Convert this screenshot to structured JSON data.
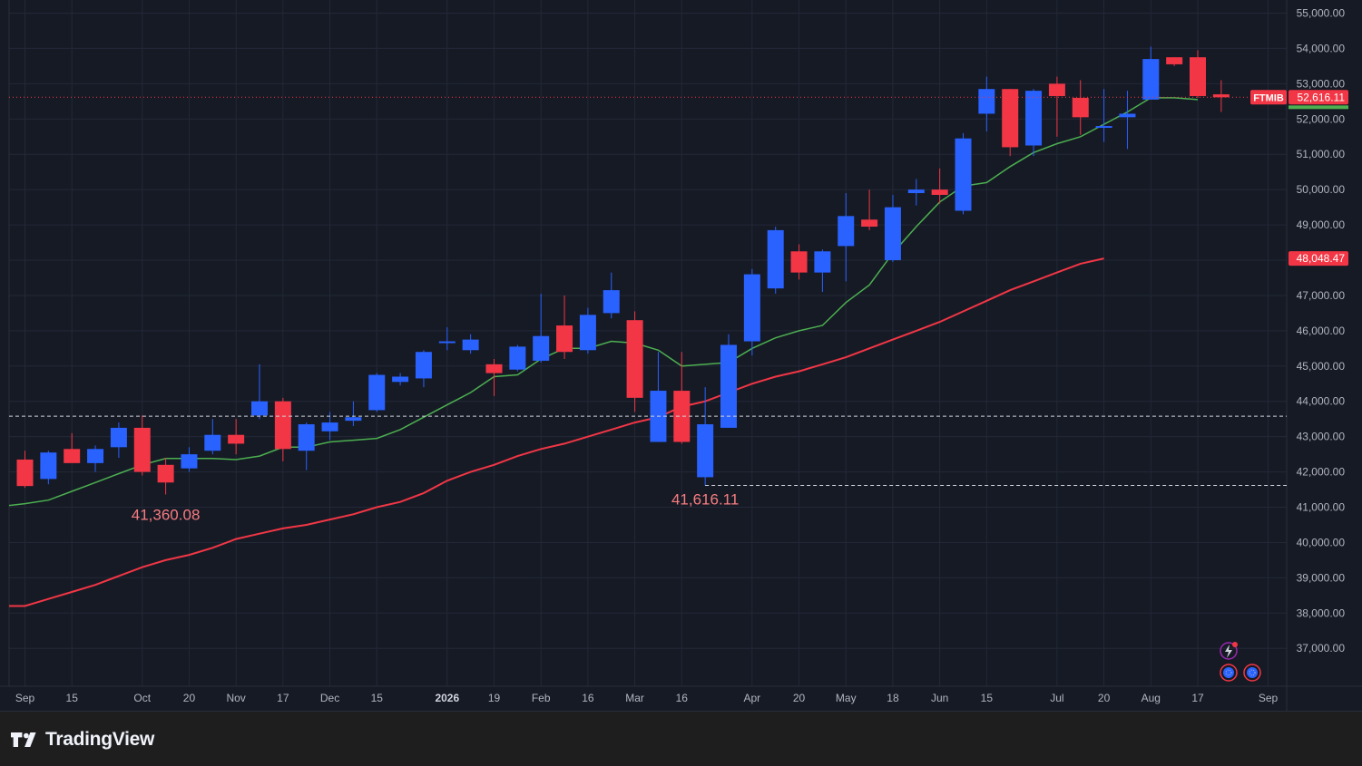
{
  "branding": {
    "name": "TradingView"
  },
  "colors": {
    "background": "#161a25",
    "grid": "#232838",
    "up": "#2962ff",
    "down": "#f23645",
    "ma_fast": "#4caf50",
    "ma_slow": "#f23645",
    "axis_text": "#b2b5be"
  },
  "chart_data": {
    "type": "candlestick",
    "symbol": "FTMIB",
    "timeframe": "weekly",
    "y_axis": {
      "position": "right",
      "range": [
        36000,
        55000
      ],
      "ticks": [
        "55,000.00",
        "54,000.00",
        "53,000.00",
        "52,000.00",
        "51,000.00",
        "50,000.00",
        "49,000.00",
        "48,000.00",
        "47,000.00",
        "46,000.00",
        "45,000.00",
        "44,000.00",
        "43,000.00",
        "42,000.00",
        "41,000.00",
        "40,000.00",
        "39,000.00",
        "38,000.00",
        "37,000.00"
      ]
    },
    "x_axis": {
      "labels": [
        {
          "text": "Sep",
          "i": 0,
          "bold": false
        },
        {
          "text": "15",
          "i": 2,
          "bold": false
        },
        {
          "text": "Oct",
          "i": 5,
          "bold": false
        },
        {
          "text": "20",
          "i": 7,
          "bold": false
        },
        {
          "text": "Nov",
          "i": 9,
          "bold": false
        },
        {
          "text": "17",
          "i": 11,
          "bold": false
        },
        {
          "text": "Dec",
          "i": 13,
          "bold": false
        },
        {
          "text": "15",
          "i": 15,
          "bold": false
        },
        {
          "text": "2026",
          "i": 18,
          "bold": true
        },
        {
          "text": "19",
          "i": 20,
          "bold": false
        },
        {
          "text": "Feb",
          "i": 22,
          "bold": false
        },
        {
          "text": "16",
          "i": 24,
          "bold": false
        },
        {
          "text": "Mar",
          "i": 26,
          "bold": false
        },
        {
          "text": "16",
          "i": 28,
          "bold": false
        },
        {
          "text": "Apr",
          "i": 31,
          "bold": false
        },
        {
          "text": "20",
          "i": 33,
          "bold": false
        },
        {
          "text": "May",
          "i": 35,
          "bold": false
        },
        {
          "text": "18",
          "i": 37,
          "bold": false
        },
        {
          "text": "Jun",
          "i": 39,
          "bold": false
        },
        {
          "text": "15",
          "i": 41,
          "bold": false
        },
        {
          "text": "Jul",
          "i": 44,
          "bold": false
        },
        {
          "text": "20",
          "i": 46,
          "bold": false
        },
        {
          "text": "Aug",
          "i": 48,
          "bold": false
        },
        {
          "text": "17",
          "i": 50,
          "bold": false
        },
        {
          "text": "Sep",
          "i": 53,
          "bold": false
        }
      ]
    },
    "candles": [
      {
        "o": 42350,
        "h": 42600,
        "l": 41550,
        "c": 41600
      },
      {
        "o": 41800,
        "h": 42600,
        "l": 41650,
        "c": 42550
      },
      {
        "o": 42650,
        "h": 43100,
        "l": 42300,
        "c": 42250
      },
      {
        "o": 42250,
        "h": 42750,
        "l": 42000,
        "c": 42650
      },
      {
        "o": 42700,
        "h": 43400,
        "l": 42400,
        "c": 43250
      },
      {
        "o": 43250,
        "h": 43600,
        "l": 41900,
        "c": 42000
      },
      {
        "o": 42200,
        "h": 42400,
        "l": 41360.08,
        "c": 41700
      },
      {
        "o": 42100,
        "h": 42700,
        "l": 42000,
        "c": 42500
      },
      {
        "o": 42600,
        "h": 43500,
        "l": 42500,
        "c": 43050
      },
      {
        "o": 43050,
        "h": 43500,
        "l": 42500,
        "c": 42800
      },
      {
        "o": 43600,
        "h": 45050,
        "l": 43500,
        "c": 44000
      },
      {
        "o": 44000,
        "h": 44100,
        "l": 42300,
        "c": 42650
      },
      {
        "o": 42600,
        "h": 43400,
        "l": 42050,
        "c": 43350
      },
      {
        "o": 43150,
        "h": 43700,
        "l": 42900,
        "c": 43400
      },
      {
        "o": 43450,
        "h": 44000,
        "l": 43300,
        "c": 43550
      },
      {
        "o": 43750,
        "h": 44800,
        "l": 43700,
        "c": 44750
      },
      {
        "o": 44550,
        "h": 44800,
        "l": 44450,
        "c": 44700
      },
      {
        "o": 44650,
        "h": 45450,
        "l": 44400,
        "c": 45400
      },
      {
        "o": 45650,
        "h": 46100,
        "l": 45450,
        "c": 45700
      },
      {
        "o": 45450,
        "h": 45900,
        "l": 45350,
        "c": 45750
      },
      {
        "o": 45050,
        "h": 45200,
        "l": 44150,
        "c": 44800
      },
      {
        "o": 44900,
        "h": 45600,
        "l": 44850,
        "c": 45550
      },
      {
        "o": 45150,
        "h": 47050,
        "l": 45100,
        "c": 45850
      },
      {
        "o": 46150,
        "h": 47000,
        "l": 45200,
        "c": 45400
      },
      {
        "o": 45450,
        "h": 46650,
        "l": 45350,
        "c": 46450
      },
      {
        "o": 46500,
        "h": 47650,
        "l": 46350,
        "c": 47150
      },
      {
        "o": 46300,
        "h": 46550,
        "l": 43700,
        "c": 44100
      },
      {
        "o": 42850,
        "h": 45400,
        "l": 42850,
        "c": 44300
      },
      {
        "o": 44300,
        "h": 45400,
        "l": 42800,
        "c": 42850
      },
      {
        "o": 41850,
        "h": 44400,
        "l": 41616.11,
        "c": 43350
      },
      {
        "o": 43250,
        "h": 45900,
        "l": 43250,
        "c": 45600
      },
      {
        "o": 45700,
        "h": 47750,
        "l": 45300,
        "c": 47600
      },
      {
        "o": 47200,
        "h": 48950,
        "l": 47050,
        "c": 48850
      },
      {
        "o": 48250,
        "h": 48450,
        "l": 47450,
        "c": 47650
      },
      {
        "o": 47650,
        "h": 48300,
        "l": 47100,
        "c": 48250
      },
      {
        "o": 48400,
        "h": 49900,
        "l": 47400,
        "c": 49250
      },
      {
        "o": 49150,
        "h": 50000,
        "l": 48850,
        "c": 48950
      },
      {
        "o": 48000,
        "h": 49850,
        "l": 47950,
        "c": 49500
      },
      {
        "o": 49900,
        "h": 50300,
        "l": 49550,
        "c": 50000
      },
      {
        "o": 50000,
        "h": 50600,
        "l": 49600,
        "c": 49850
      },
      {
        "o": 49400,
        "h": 51600,
        "l": 49300,
        "c": 51450
      },
      {
        "o": 52150,
        "h": 53200,
        "l": 51650,
        "c": 52850
      },
      {
        "o": 52850,
        "h": 52850,
        "l": 50950,
        "c": 51200
      },
      {
        "o": 51250,
        "h": 52850,
        "l": 50950,
        "c": 52800
      },
      {
        "o": 53000,
        "h": 53200,
        "l": 51500,
        "c": 52650
      },
      {
        "o": 52600,
        "h": 53100,
        "l": 51550,
        "c": 52050
      },
      {
        "o": 51750,
        "h": 52850,
        "l": 51350,
        "c": 51800
      },
      {
        "o": 52050,
        "h": 52800,
        "l": 51150,
        "c": 52150
      },
      {
        "o": 52550,
        "h": 54050,
        "l": 52550,
        "c": 53700
      },
      {
        "o": 53750,
        "h": 53750,
        "l": 53500,
        "c": 53550
      },
      {
        "o": 53750,
        "h": 53950,
        "l": 52600,
        "c": 52650
      },
      {
        "o": 52700,
        "h": 53100,
        "l": 52200,
        "c": 52616.11
      }
    ],
    "ma_fast": [
      41100,
      41200,
      41450,
      41700,
      41950,
      42200,
      42380,
      42380,
      42380,
      42350,
      42450,
      42700,
      42700,
      42850,
      42900,
      42950,
      43200,
      43550,
      43900,
      44250,
      44700,
      44750,
      45200,
      45500,
      45500,
      45700,
      45650,
      45450,
      45000,
      45050,
      45100,
      45500,
      45800,
      46000,
      46150,
      46800,
      47300,
      48200,
      48950,
      49650,
      50100,
      50200,
      50650,
      51050,
      51300,
      51500,
      51850,
      52200,
      52600,
      52600,
      52550
    ],
    "ma_slow": [
      38200,
      38400,
      38600,
      38800,
      39050,
      39300,
      39500,
      39650,
      39850,
      40100,
      40250,
      40400,
      40500,
      40650,
      40800,
      41000,
      41150,
      41400,
      41750,
      42000,
      42200,
      42450,
      42650,
      42800,
      43000,
      43200,
      43400,
      43550,
      43850,
      44000,
      44250,
      44500,
      44700,
      44850,
      45050,
      45250,
      45500,
      45750,
      46000,
      46250,
      46550,
      46850,
      47150,
      47400,
      47650,
      47900,
      48050
    ],
    "ma_slow_start_index": 0,
    "labels": {
      "low_1": "41,360.08",
      "low_2": "41,616.11",
      "last_price": "52,616.11",
      "ma_slow_value": "48,048.47",
      "symbol_tag": "FTMIB"
    },
    "dashed_levels": [
      43580,
      41616.11
    ],
    "last_price_value": 52616.11,
    "ma_slow_last_value": 48048.47
  }
}
